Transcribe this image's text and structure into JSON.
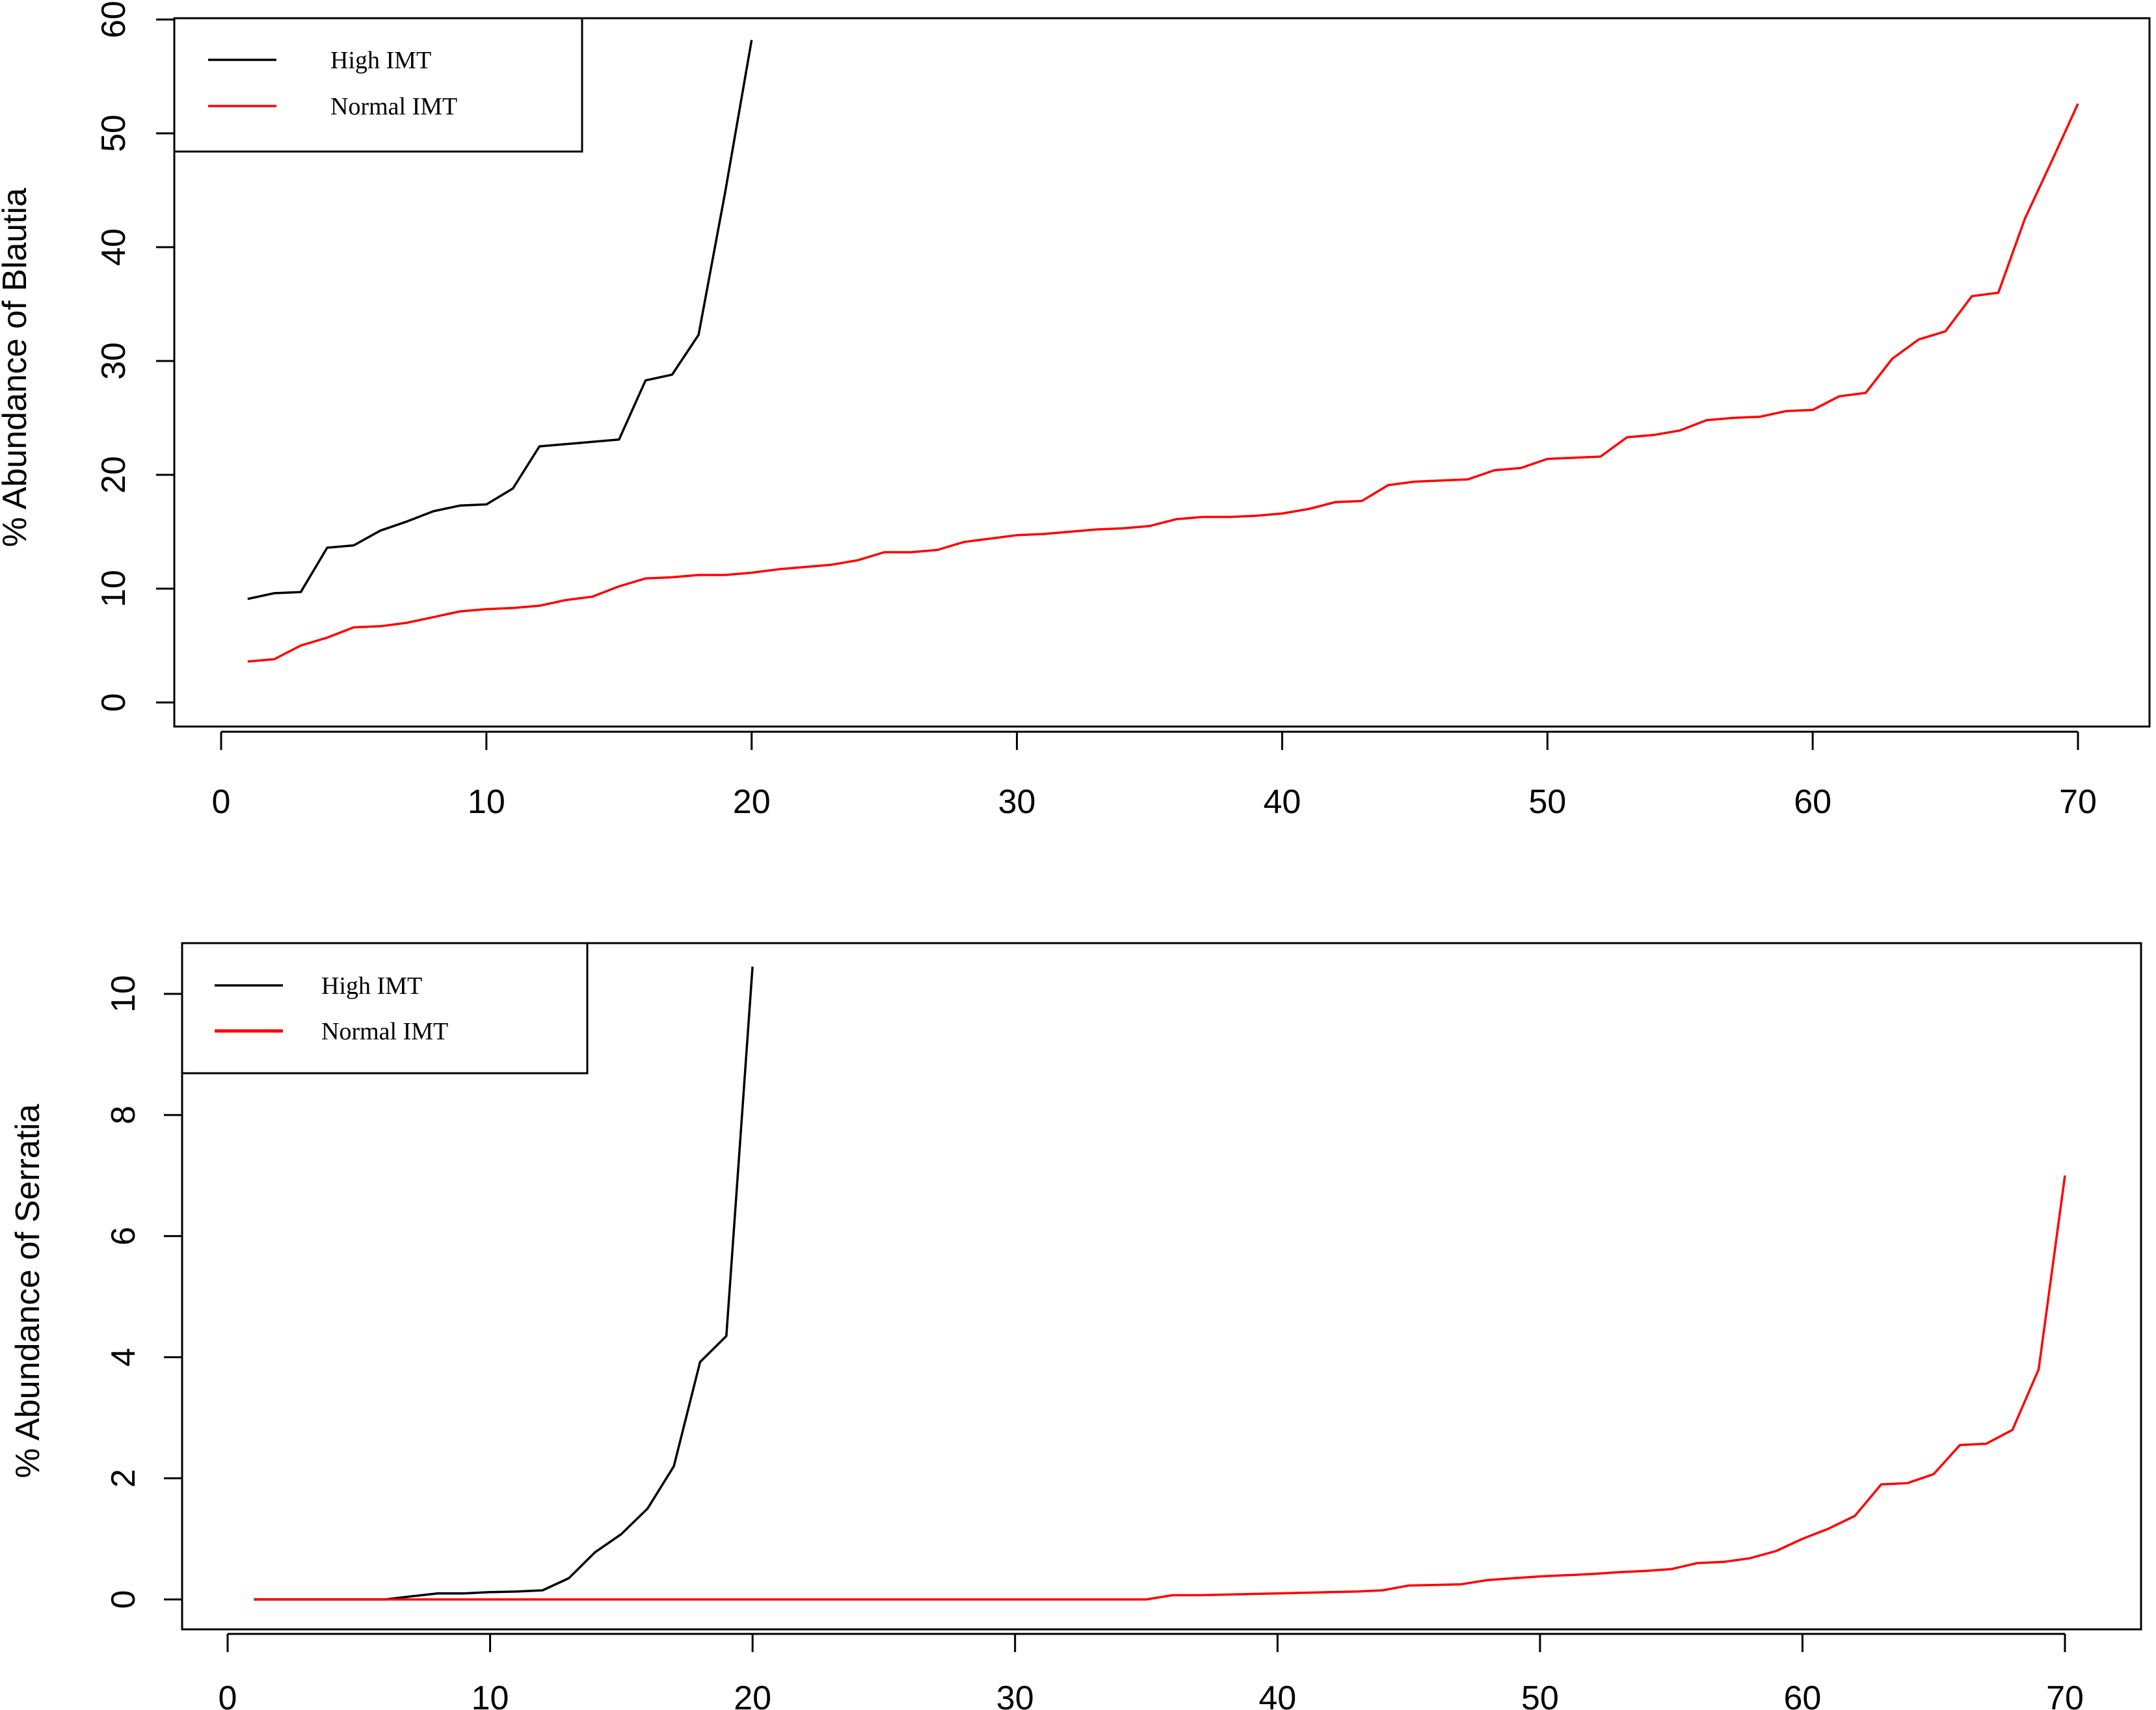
{
  "chart_data": [
    {
      "type": "line",
      "title": "",
      "xlabel": "",
      "ylabel": "% Abundance of Blautia",
      "xlim": [
        0,
        70
      ],
      "ylim": [
        0,
        60
      ],
      "xticks": [
        0,
        10,
        20,
        30,
        40,
        50,
        60,
        70
      ],
      "yticks": [
        0,
        10,
        20,
        30,
        40,
        50,
        60
      ],
      "grid": false,
      "legend_position": "top-left",
      "series": [
        {
          "name": "High IMT",
          "color": "#000000",
          "x": [
            1,
            2,
            3,
            4,
            5,
            6,
            7,
            8,
            9,
            10,
            11,
            12,
            13,
            14,
            15,
            16,
            17,
            18,
            19,
            20
          ],
          "y": [
            9.1,
            9.6,
            9.7,
            13.6,
            13.8,
            15.1,
            15.9,
            16.8,
            17.3,
            17.4,
            18.8,
            22.5,
            22.7,
            22.9,
            23.1,
            28.3,
            28.8,
            32.3,
            44.8,
            58.2
          ]
        },
        {
          "name": "Normal IMT",
          "color": "#ff0000",
          "x": [
            1,
            2,
            3,
            4,
            5,
            6,
            7,
            8,
            9,
            10,
            11,
            12,
            13,
            14,
            15,
            16,
            17,
            18,
            19,
            20,
            21,
            22,
            23,
            24,
            25,
            26,
            27,
            28,
            29,
            30,
            31,
            32,
            33,
            34,
            35,
            36,
            37,
            38,
            39,
            40,
            41,
            42,
            43,
            44,
            45,
            46,
            47,
            48,
            49,
            50,
            51,
            52,
            53,
            54,
            55,
            56,
            57,
            58,
            59,
            60,
            61,
            62,
            63,
            64,
            65,
            66,
            67,
            68,
            69,
            70
          ],
          "y": [
            3.6,
            3.8,
            5.0,
            5.7,
            6.6,
            6.7,
            7.0,
            7.5,
            8.0,
            8.2,
            8.3,
            8.5,
            9.0,
            9.3,
            10.2,
            10.9,
            11.0,
            11.2,
            11.2,
            11.4,
            11.7,
            11.9,
            12.1,
            12.5,
            13.2,
            13.2,
            13.4,
            14.1,
            14.4,
            14.7,
            14.8,
            15.0,
            15.2,
            15.3,
            15.5,
            16.1,
            16.3,
            16.3,
            16.4,
            16.6,
            17.0,
            17.6,
            17.7,
            19.1,
            19.4,
            19.5,
            19.6,
            20.4,
            20.6,
            21.4,
            21.5,
            21.6,
            23.3,
            23.5,
            23.9,
            24.8,
            25.0,
            25.1,
            25.6,
            25.7,
            26.9,
            27.2,
            30.2,
            31.9,
            32.6,
            35.7,
            36.0,
            42.5,
            47.5,
            52.6
          ]
        }
      ]
    },
    {
      "type": "line",
      "title": "",
      "xlabel": "",
      "ylabel": "% Abundance of Serratia",
      "xlim": [
        0,
        70
      ],
      "ylim": [
        0,
        10
      ],
      "xticks": [
        0,
        10,
        20,
        30,
        40,
        50,
        60,
        70
      ],
      "yticks": [
        0,
        2,
        4,
        6,
        8,
        10
      ],
      "grid": false,
      "legend_position": "top-left",
      "series": [
        {
          "name": "High IMT",
          "color": "#000000",
          "x": [
            1,
            2,
            3,
            4,
            5,
            6,
            7,
            8,
            9,
            10,
            11,
            12,
            13,
            14,
            15,
            16,
            17,
            18,
            19,
            20
          ],
          "y": [
            0,
            0,
            0,
            0,
            0,
            0,
            0.05,
            0.1,
            0.1,
            0.12,
            0.13,
            0.15,
            0.35,
            0.78,
            1.08,
            1.5,
            2.2,
            3.92,
            4.35,
            10.45
          ]
        },
        {
          "name": "Normal IMT",
          "color": "#ff0000",
          "x": [
            1,
            2,
            3,
            4,
            5,
            6,
            7,
            8,
            9,
            10,
            11,
            12,
            13,
            14,
            15,
            16,
            17,
            18,
            19,
            20,
            21,
            22,
            23,
            24,
            25,
            26,
            27,
            28,
            29,
            30,
            31,
            32,
            33,
            34,
            35,
            36,
            37,
            38,
            39,
            40,
            41,
            42,
            43,
            44,
            45,
            46,
            47,
            48,
            49,
            50,
            51,
            52,
            53,
            54,
            55,
            56,
            57,
            58,
            59,
            60,
            61,
            62,
            63,
            64,
            65,
            66,
            67,
            68,
            69,
            70
          ],
          "y": [
            0,
            0,
            0,
            0,
            0,
            0,
            0,
            0,
            0,
            0,
            0,
            0,
            0,
            0,
            0,
            0,
            0,
            0,
            0,
            0,
            0,
            0,
            0,
            0,
            0,
            0,
            0,
            0,
            0,
            0,
            0,
            0,
            0,
            0,
            0,
            0.07,
            0.07,
            0.08,
            0.09,
            0.1,
            0.11,
            0.12,
            0.13,
            0.15,
            0.23,
            0.24,
            0.25,
            0.32,
            0.35,
            0.38,
            0.4,
            0.42,
            0.45,
            0.47,
            0.5,
            0.6,
            0.62,
            0.68,
            0.8,
            1.0,
            1.17,
            1.38,
            1.9,
            1.92,
            2.07,
            2.55,
            2.57,
            2.8,
            3.8,
            7.0
          ]
        }
      ]
    }
  ]
}
